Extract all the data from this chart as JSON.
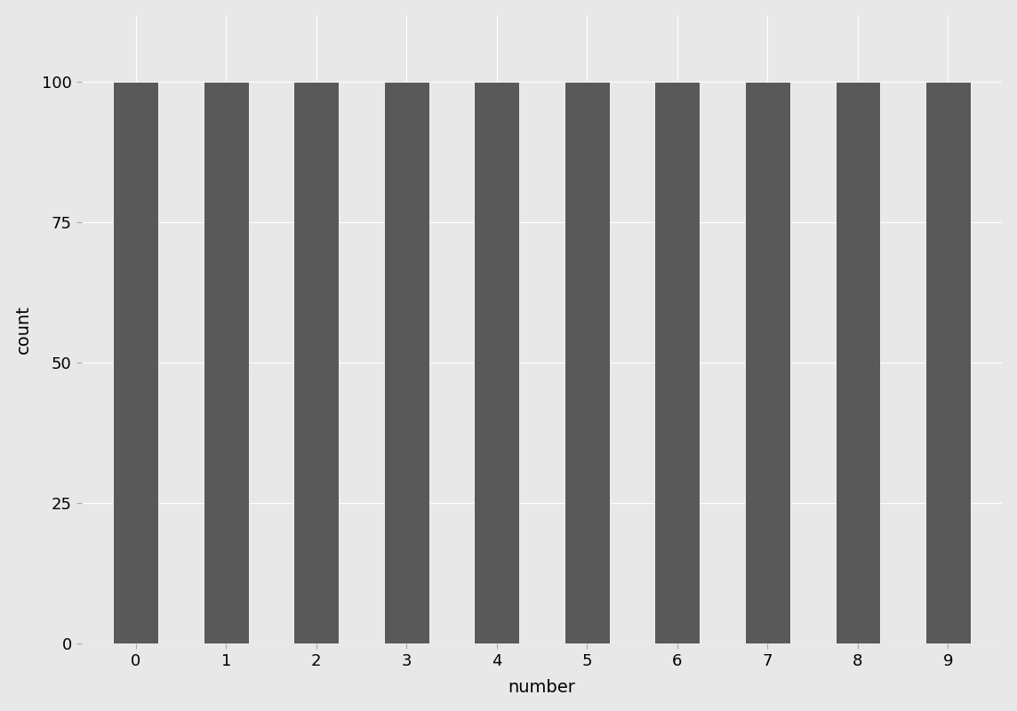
{
  "categories": [
    0,
    1,
    2,
    3,
    4,
    5,
    6,
    7,
    8,
    9
  ],
  "values": [
    100,
    100,
    100,
    100,
    100,
    100,
    100,
    100,
    100,
    100
  ],
  "bar_color": "#595959",
  "bar_edge_color": "#ffffff",
  "background_color": "#e8e8e8",
  "panel_background": "#e8e8e8",
  "grid_color": "#ffffff",
  "xlabel": "number",
  "ylabel": "count",
  "ylim": [
    0,
    112
  ],
  "yticks": [
    0,
    25,
    50,
    75,
    100
  ],
  "xticks": [
    0,
    1,
    2,
    3,
    4,
    5,
    6,
    7,
    8,
    9
  ],
  "tick_label_fontsize": 13,
  "axis_label_fontsize": 14,
  "bar_width": 0.5,
  "xlim": [
    -0.6,
    9.6
  ]
}
